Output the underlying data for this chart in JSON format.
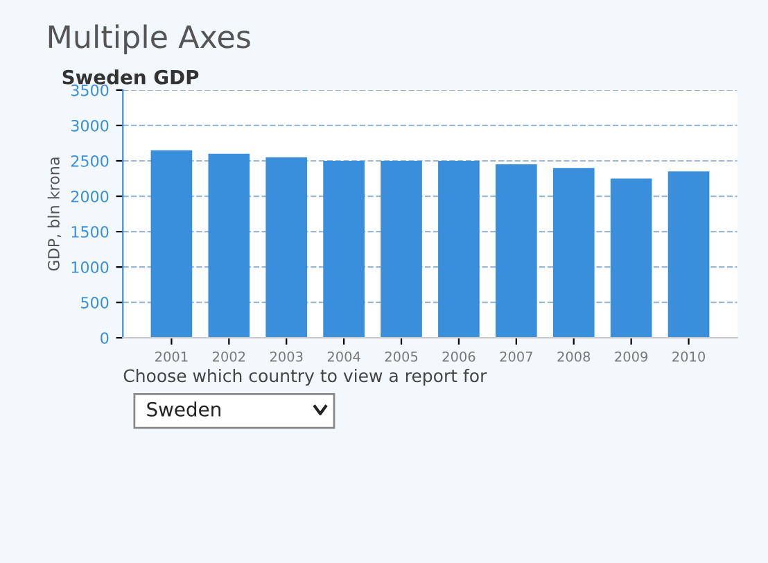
{
  "chart_data": {
    "type": "bar",
    "title": "Multiple Axes",
    "subtitle": "Sweden GDP",
    "ylabel": "GDP, bln krona",
    "categories": [
      "2001",
      "2002",
      "2003",
      "2004",
      "2005",
      "2006",
      "2007",
      "2008",
      "2009",
      "2010"
    ],
    "values": [
      2650,
      2600,
      2550,
      2500,
      2500,
      2500,
      2450,
      2400,
      2250,
      2350
    ],
    "color": "#3a8fdc",
    "ylim": [
      0,
      3500
    ],
    "yticks": [
      0,
      500,
      1000,
      1500,
      2000,
      2500,
      3000,
      3500
    ],
    "grid": "y",
    "annotations": [
      "Choose which country to view a report for",
      "Sweden"
    ]
  }
}
